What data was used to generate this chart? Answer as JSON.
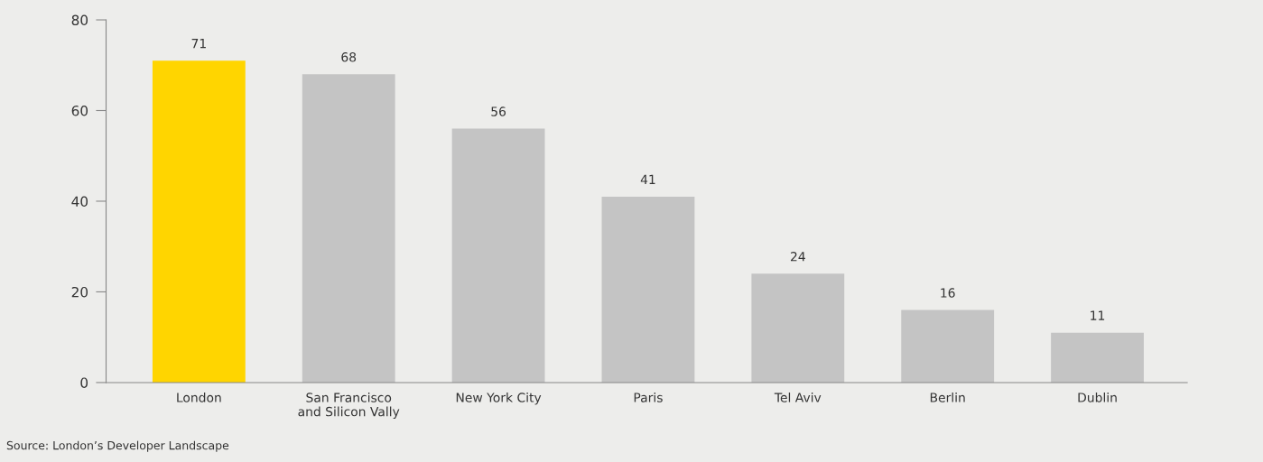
{
  "chart_data": {
    "type": "bar",
    "categories": [
      "London",
      "San Francisco\nand Silicon Vally",
      "New York City",
      "Paris",
      "Tel Aviv",
      "Berlin",
      "Dublin"
    ],
    "values": [
      71,
      68,
      56,
      41,
      24,
      16,
      11
    ],
    "colors": [
      "#ffd500",
      "#c4c4c4",
      "#c4c4c4",
      "#c4c4c4",
      "#c4c4c4",
      "#c4c4c4",
      "#c4c4c4"
    ],
    "ylim": [
      0,
      80
    ],
    "yticks": [
      0,
      20,
      40,
      60,
      80
    ],
    "data_labels": true,
    "grid": false,
    "legend": false,
    "annotations": [
      "Source: London’s Developer Landscape"
    ]
  }
}
